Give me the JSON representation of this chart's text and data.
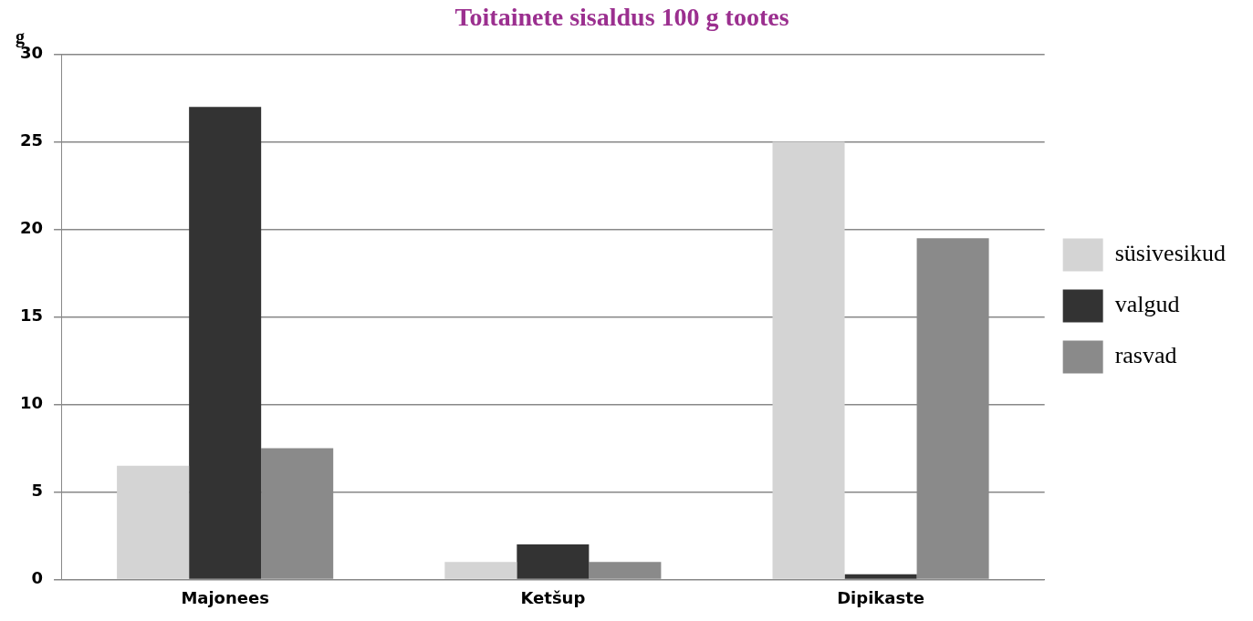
{
  "chart_data": {
    "type": "bar",
    "title": "Toitainete sisaldus 100 g tootes",
    "ylabel": "g",
    "categories": [
      "Majonees",
      "Ketšup",
      "Dipikaste"
    ],
    "series": [
      {
        "name": "süsivesikud",
        "color": "#d4d4d4",
        "values": [
          6.5,
          1,
          25
        ]
      },
      {
        "name": "valgud",
        "color": "#333333",
        "values": [
          27,
          2,
          0.3
        ]
      },
      {
        "name": "rasvad",
        "color": "#8a8a8a",
        "values": [
          7.5,
          1,
          19.5
        ]
      }
    ],
    "ylim": [
      0,
      30
    ],
    "yticks": [
      0,
      5,
      10,
      15,
      20,
      25,
      30
    ],
    "grid": "y",
    "legend": "right"
  }
}
